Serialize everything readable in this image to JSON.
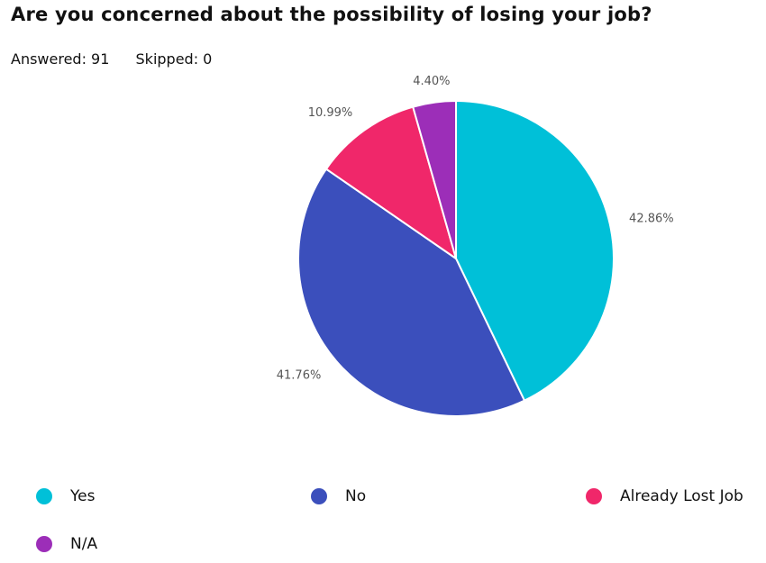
{
  "question": {
    "title": "Are you concerned about the possibility of losing your job?"
  },
  "stats": {
    "answered": "Answered: 91",
    "skipped": "Skipped: 0"
  },
  "chart_data": {
    "type": "pie",
    "title": "Are you concerned about the possibility of losing your job?",
    "categories": [
      "Yes",
      "No",
      "Already Lost Job",
      "N/A"
    ],
    "values": [
      42.86,
      41.76,
      10.99,
      4.4
    ],
    "data_labels": [
      "42.86%",
      "41.76%",
      "10.99%",
      "4.40%"
    ],
    "colors": [
      "#00c0d8",
      "#3b4fbc",
      "#f0276a",
      "#9c2eb8"
    ],
    "legend_position": "bottom",
    "start_angle": "12 o'clock",
    "direction": "clockwise"
  },
  "legend": {
    "items": [
      {
        "label": "Yes",
        "color": "#00c0d8"
      },
      {
        "label": "No",
        "color": "#3b4fbc"
      },
      {
        "label": "Already Lost Job",
        "color": "#f0276a"
      },
      {
        "label": "N/A",
        "color": "#9c2eb8"
      }
    ]
  }
}
